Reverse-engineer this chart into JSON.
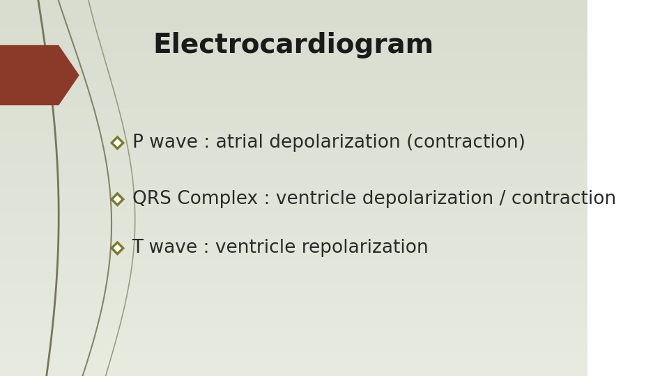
{
  "title": "Electrocardiogram",
  "title_fontsize": 28,
  "title_fontweight": "bold",
  "title_color": "#1a1a1a",
  "background_color_top": "#d8ddd0",
  "background_color_bottom": "#e8ebe0",
  "bullet_points": [
    "P wave : atrial depolarization (contraction)",
    "QRS Complex : ventricle depolarization / contraction",
    "T wave : ventricle repolarization"
  ],
  "bullet_color": "#7a7a2a",
  "bullet_fontsize": 19,
  "bullet_text_color": "#2a2a2a",
  "arrow_color": "#8b3a2a",
  "line_color": "#6b6b4a",
  "line_color2": "#9b9b7a"
}
